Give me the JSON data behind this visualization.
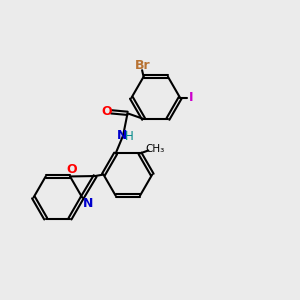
{
  "bg_color": "#ebebeb",
  "bond_color": "#000000",
  "bond_width": 1.5,
  "dbo": 0.055,
  "ring_r": 0.82,
  "atoms": {
    "Br": {
      "color": "#b87333"
    },
    "O": {
      "color": "#ff0000"
    },
    "N": {
      "color": "#0000cc"
    },
    "H": {
      "color": "#008888"
    },
    "I": {
      "color": "#cc00cc"
    }
  },
  "figsize": [
    3.0,
    3.0
  ],
  "dpi": 100
}
